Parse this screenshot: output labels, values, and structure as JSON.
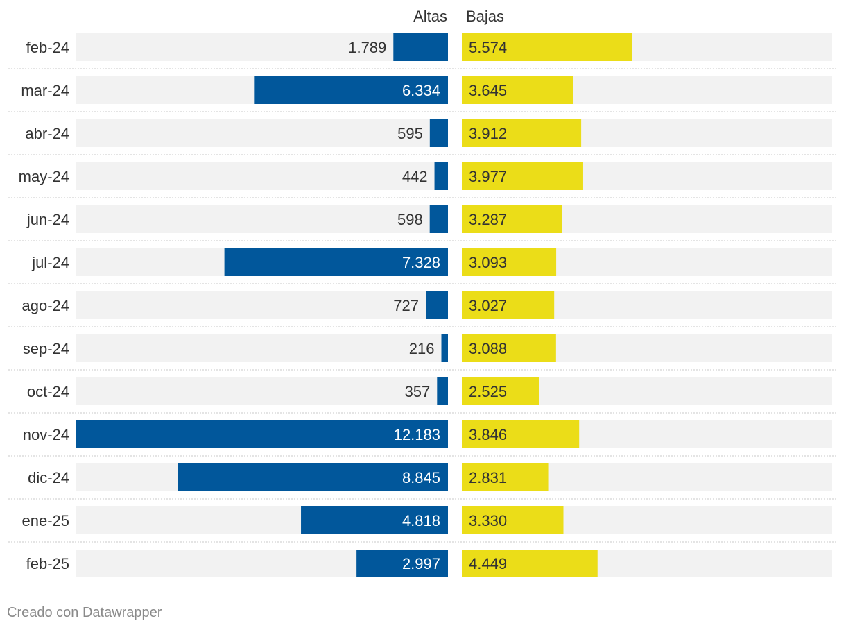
{
  "chart_data": {
    "type": "bar",
    "layout": "diverging",
    "series": [
      {
        "name": "Altas",
        "color": "#01579b",
        "values": [
          1789,
          6334,
          595,
          442,
          598,
          7328,
          727,
          216,
          357,
          12183,
          8845,
          4818,
          2997
        ],
        "labels": [
          "1.789",
          "6.334",
          "595",
          "442",
          "598",
          "7.328",
          "727",
          "216",
          "357",
          "12.183",
          "8.845",
          "4.818",
          "2.997"
        ]
      },
      {
        "name": "Bajas",
        "color": "#ebdd18",
        "values": [
          5574,
          3645,
          3912,
          3977,
          3287,
          3093,
          3027,
          3088,
          2525,
          3846,
          2831,
          3330,
          4449
        ],
        "labels": [
          "5.574",
          "3.645",
          "3.912",
          "3.977",
          "3.287",
          "3.093",
          "3.027",
          "3.088",
          "2.525",
          "3.846",
          "2.831",
          "3.330",
          "4.449"
        ]
      }
    ],
    "categories": [
      "feb-24",
      "mar-24",
      "abr-24",
      "may-24",
      "jun-24",
      "jul-24",
      "ago-24",
      "sep-24",
      "oct-24",
      "nov-24",
      "dic-24",
      "ene-25",
      "feb-25"
    ],
    "xlim": [
      0,
      12183
    ]
  },
  "footer": "Creado con Datawrapper"
}
